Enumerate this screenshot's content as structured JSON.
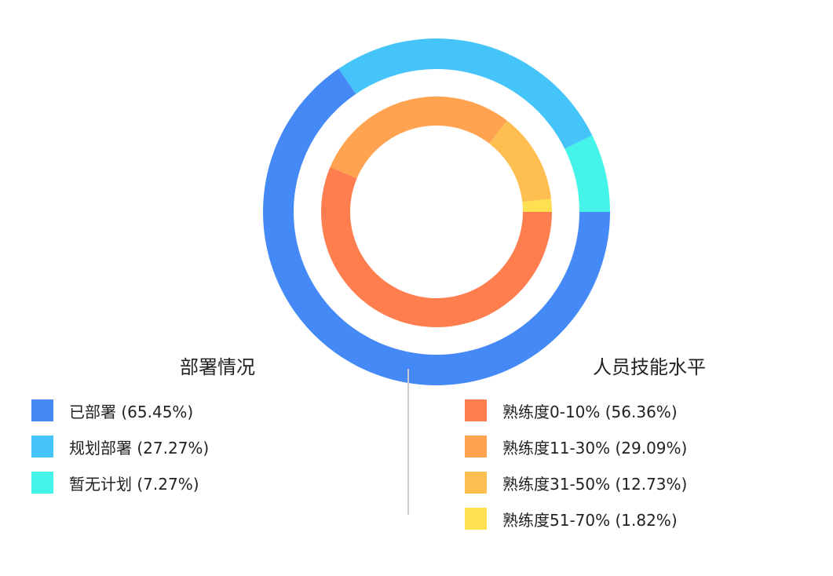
{
  "chart_data": [
    {
      "type": "pie",
      "variant": "donut",
      "title": "部署情况",
      "slices": [
        {
          "label": "已部署 (65.45%)",
          "value": 65.45,
          "color": "#4589F7"
        },
        {
          "label": "规划部署 (27.27%)",
          "value": 27.27,
          "color": "#44C4F8"
        },
        {
          "label": "暂无计划 (7.27%)",
          "value": 7.27,
          "color": "#44F4E8"
        }
      ]
    },
    {
      "type": "pie",
      "variant": "donut",
      "title": "人员技能水平",
      "slices": [
        {
          "label": "熟练度0-10% (56.36%)",
          "value": 56.36,
          "color": "#FF7E4F"
        },
        {
          "label": "熟练度11-30% (29.09%)",
          "value": 29.09,
          "color": "#FFA350"
        },
        {
          "label": "熟练度31-50% (12.73%)",
          "value": 12.73,
          "color": "#FFBE50"
        },
        {
          "label": "熟练度51-70% (1.82%)",
          "value": 1.82,
          "color": "#FFE050"
        }
      ]
    }
  ]
}
